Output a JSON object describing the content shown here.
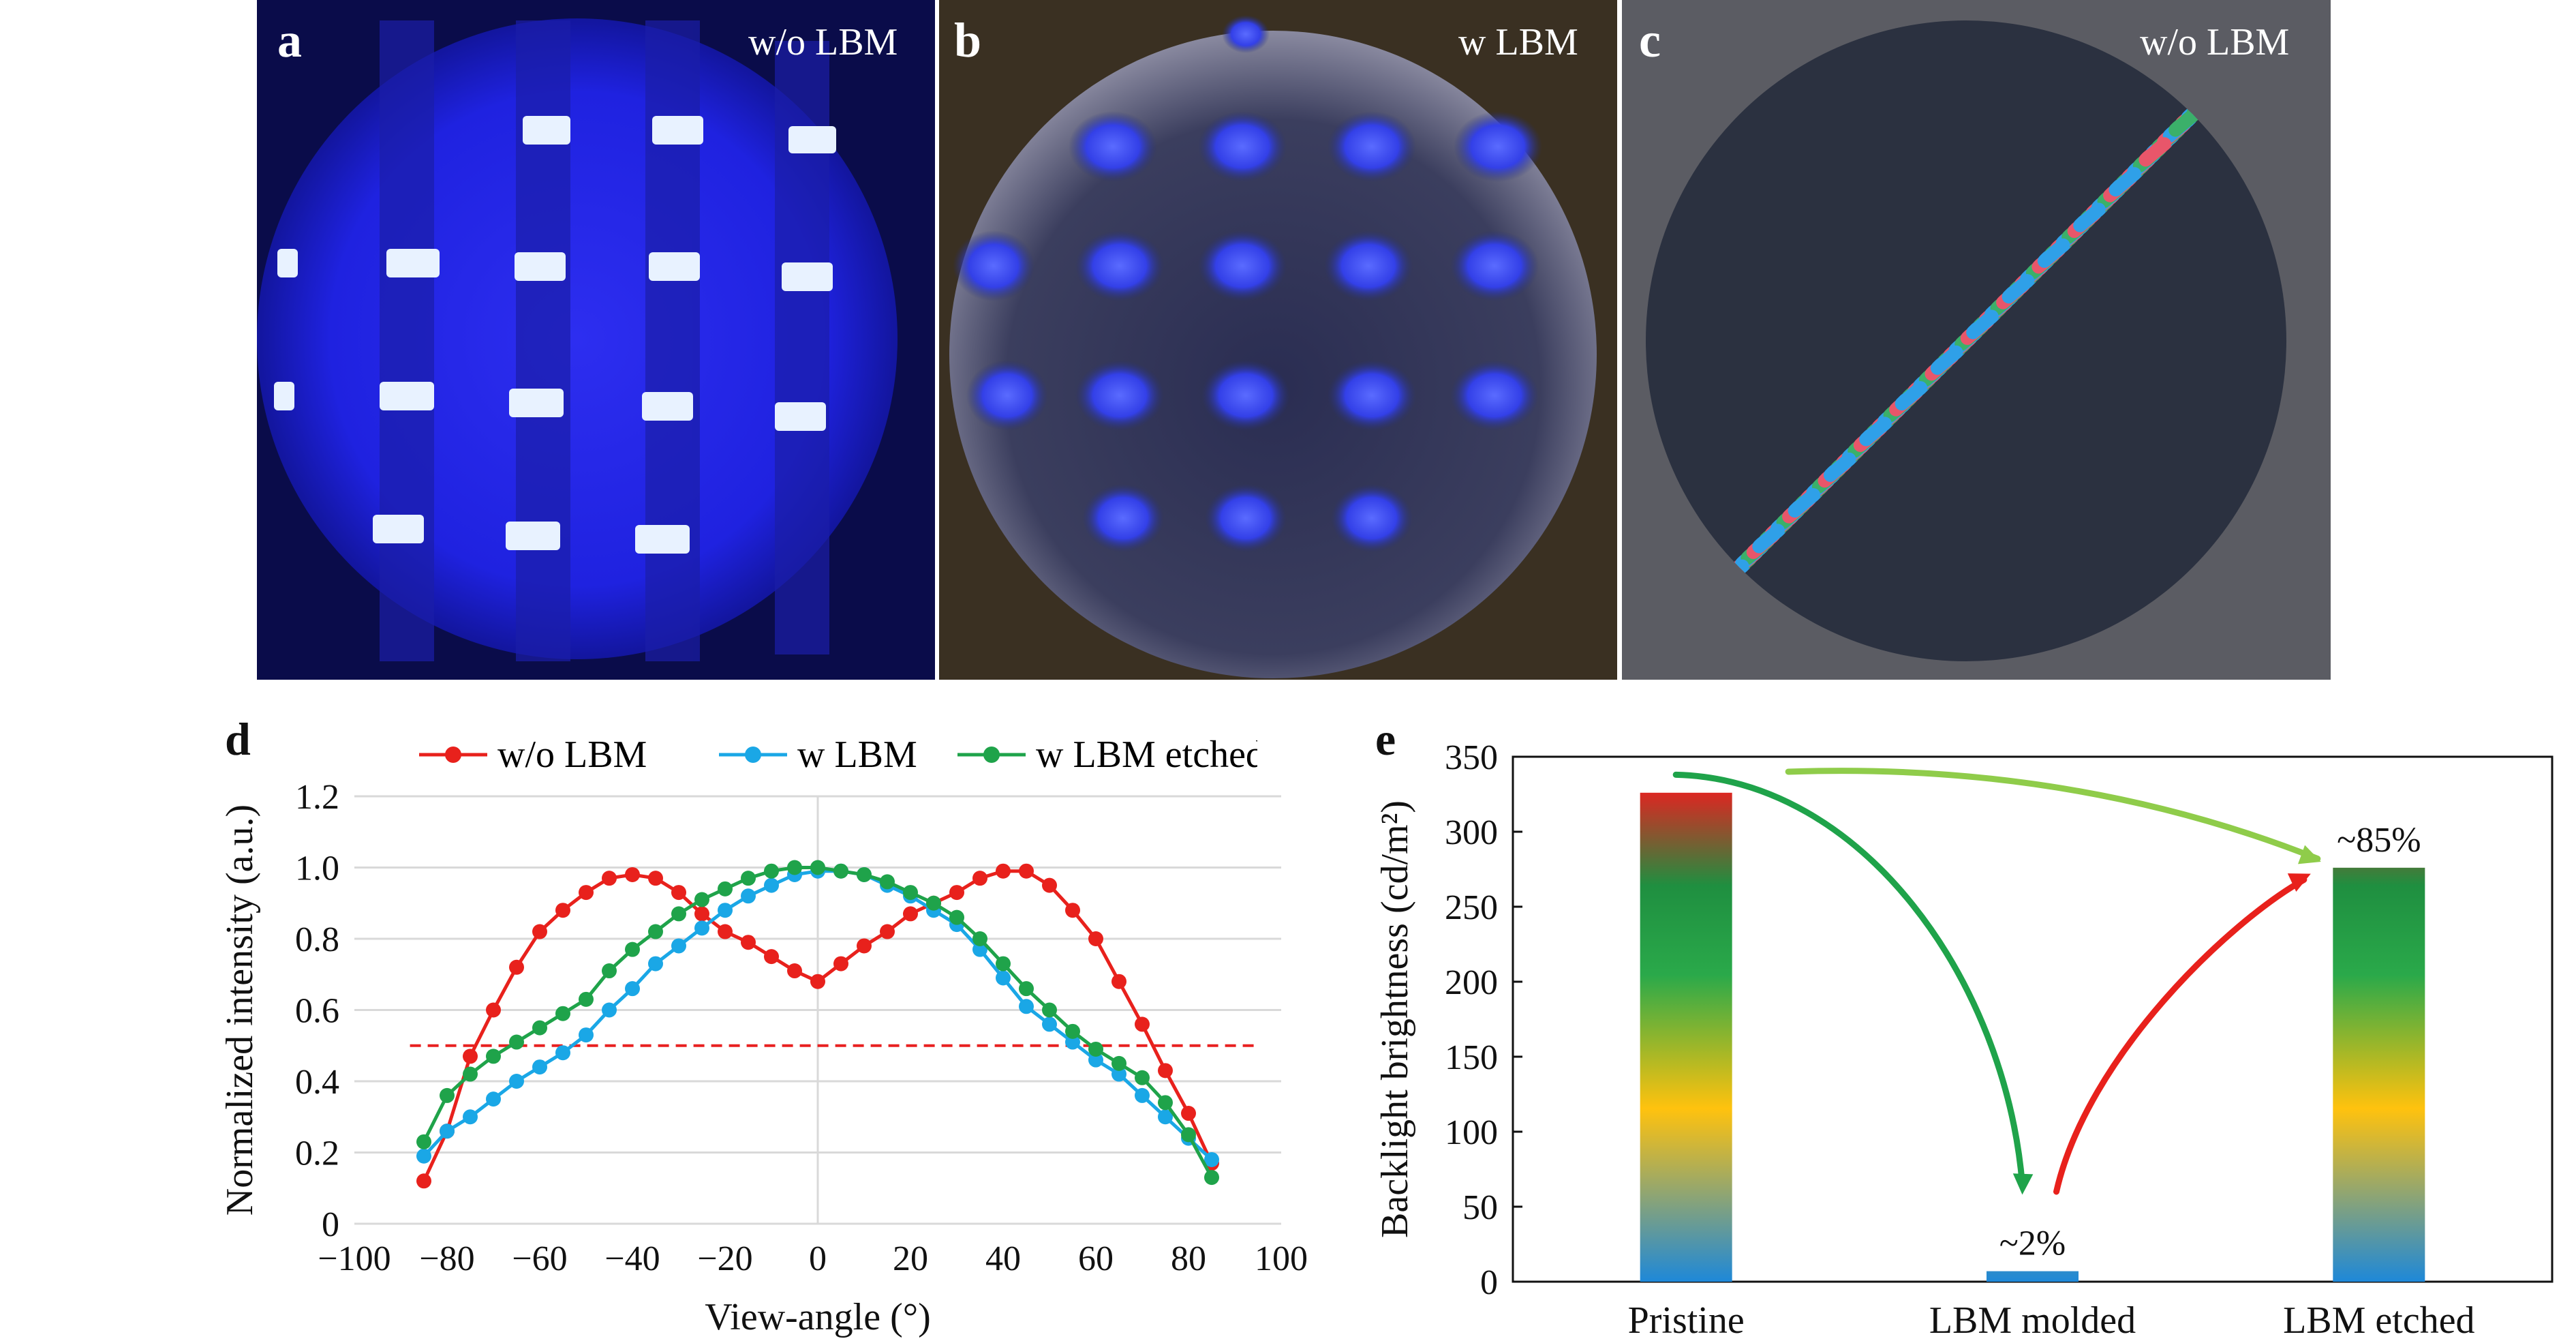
{
  "colors": {
    "red": "#e8211c",
    "blue": "#1aa7e6",
    "green": "#1fa34a",
    "light_green": "#8fcc4a",
    "dashed": "#e82020"
  },
  "panels": {
    "a": {
      "letter": "a",
      "label": "w/o LBM"
    },
    "b": {
      "letter": "b",
      "label": "w LBM"
    },
    "c": {
      "letter": "c",
      "label": "w/o LBM"
    },
    "d": {
      "letter": "d"
    },
    "e": {
      "letter": "e"
    }
  },
  "chart_data": [
    {
      "type": "line",
      "panel": "d",
      "xlabel": "View-angle (°)",
      "ylabel": "Normalized intensity (a.u.)",
      "xlim": [
        -100,
        100
      ],
      "ylim": [
        0,
        1.2
      ],
      "xticks": [
        "−100",
        "−80",
        "−60",
        "−40",
        "−20",
        "0",
        "20",
        "40",
        "60",
        "80",
        "100"
      ],
      "yticks": [
        "0",
        "0.2",
        "0.4",
        "0.6",
        "0.8",
        "1.0",
        "1.2"
      ],
      "grid": "horizontal",
      "legend_position": "top",
      "reference_line": {
        "y": 0.5,
        "x_range": [
          -88,
          95
        ],
        "style": "dashed"
      },
      "x": [
        -85,
        -80,
        -75,
        -70,
        -65,
        -60,
        -55,
        -50,
        -45,
        -40,
        -35,
        -30,
        -25,
        -20,
        -15,
        -10,
        -5,
        0,
        5,
        10,
        15,
        20,
        25,
        30,
        35,
        40,
        45,
        50,
        55,
        60,
        65,
        70,
        75,
        80,
        85
      ],
      "series": [
        {
          "name": "w/o LBM",
          "color": "#e8211c",
          "values": [
            0.12,
            0.26,
            0.47,
            0.6,
            0.72,
            0.82,
            0.88,
            0.93,
            0.97,
            0.98,
            0.97,
            0.93,
            0.87,
            0.82,
            0.79,
            0.75,
            0.71,
            0.68,
            0.73,
            0.78,
            0.82,
            0.87,
            0.9,
            0.93,
            0.97,
            0.99,
            0.99,
            0.95,
            0.88,
            0.8,
            0.68,
            0.56,
            0.43,
            0.31,
            0.17
          ]
        },
        {
          "name": "w LBM",
          "color": "#1aa7e6",
          "values": [
            0.19,
            0.26,
            0.3,
            0.35,
            0.4,
            0.44,
            0.48,
            0.53,
            0.6,
            0.66,
            0.73,
            0.78,
            0.83,
            0.88,
            0.92,
            0.95,
            0.98,
            0.99,
            0.99,
            0.98,
            0.95,
            0.92,
            0.88,
            0.84,
            0.77,
            0.69,
            0.61,
            0.56,
            0.51,
            0.46,
            0.42,
            0.36,
            0.3,
            0.24,
            0.18
          ]
        },
        {
          "name": "w LBM etched",
          "color": "#1fa34a",
          "values": [
            0.23,
            0.36,
            0.42,
            0.47,
            0.51,
            0.55,
            0.59,
            0.63,
            0.71,
            0.77,
            0.82,
            0.87,
            0.91,
            0.94,
            0.97,
            0.99,
            1.0,
            1.0,
            0.99,
            0.98,
            0.96,
            0.93,
            0.9,
            0.86,
            0.8,
            0.73,
            0.66,
            0.6,
            0.54,
            0.49,
            0.45,
            0.41,
            0.34,
            0.25,
            0.13
          ]
        }
      ]
    },
    {
      "type": "bar",
      "panel": "e",
      "ylabel": "Backlight brightness (cd/m²)",
      "ylim": [
        0,
        350
      ],
      "yticks": [
        "0",
        "50",
        "100",
        "150",
        "200",
        "250",
        "300",
        "350"
      ],
      "categories": [
        "Pristine",
        "LBM molded",
        "LBM etched"
      ],
      "values": [
        326,
        7,
        276
      ],
      "annotations": [
        "",
        "~2%",
        "~85%"
      ],
      "grid": "none"
    }
  ]
}
